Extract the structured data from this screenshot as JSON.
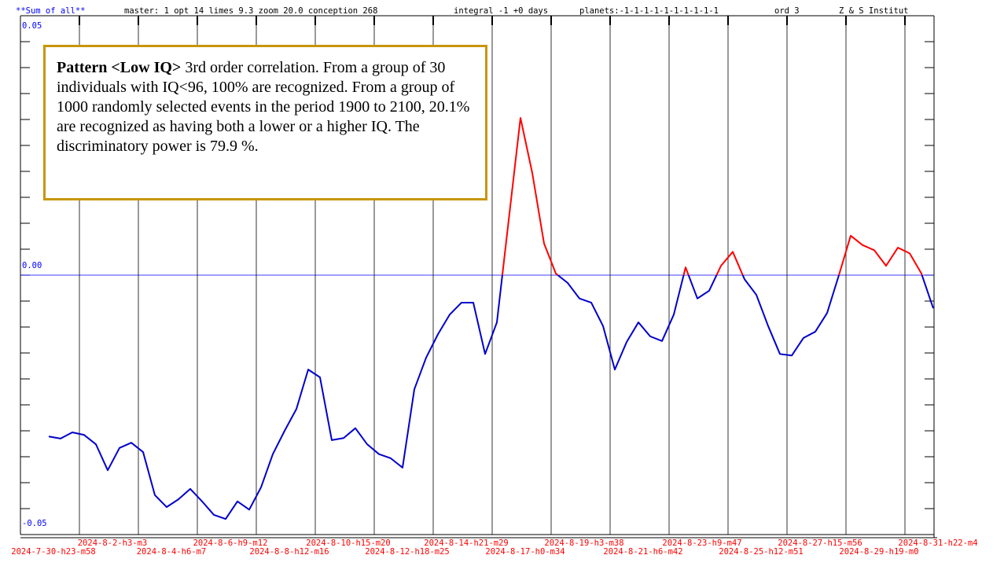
{
  "chart_data": {
    "type": "line",
    "header": [
      "**Sum of all**",
      "master: 1  opt 14 limes 9.3 zoom 20.0 conception 268",
      "integral -1 +0 days",
      "planets:-1-1-1-1-1-1-1-1-1-1",
      "ord 3",
      "Z & S Institut"
    ],
    "annotation": {
      "bold": "Pattern <Low IQ>",
      "text": "3rd order correlation. From a group of 30 individuals with IQ<96, 100% are recognized. From a group of 1000 randomly selected events in the period 1900 to 2100, 20.1% are recognized as having both a lower or a higher IQ. The discriminatory power is 79.9 %."
    },
    "xtick_labels": [
      "2024-7-30-h23-m58",
      "2024-8-2-h3-m3",
      "2024-8-4-h6-m7",
      "2024-8-6-h9-m12",
      "2024-8-8-h12-m16",
      "2024-8-10-h15-m20",
      "2024-8-12-h18-m25",
      "2024-8-14-h21-m29",
      "2024-8-17-h0-m34",
      "2024-8-19-h3-m38",
      "2024-8-21-h6-m42",
      "2024-8-23-h9-m47",
      "2024-8-25-h12-m51",
      "2024-8-27-h15-m56",
      "2024-8-29-h19-m0",
      "2024-8-31-h22-m4"
    ],
    "ylim": [
      -0.05,
      0.05
    ],
    "yticks": [
      {
        "value": -0.05,
        "label": "-0.05"
      },
      {
        "value": 0,
        "label": "0.00"
      },
      {
        "value": 0.05,
        "label": "0.05"
      }
    ],
    "color": "#0000cc",
    "positive_color": "#ff0000",
    "grid": true,
    "values": [
      -0.0311,
      -0.0315,
      -0.0303,
      -0.0308,
      -0.0326,
      -0.0376,
      -0.0333,
      -0.0323,
      -0.0341,
      -0.0424,
      -0.0447,
      -0.0432,
      -0.0412,
      -0.0436,
      -0.0462,
      -0.047,
      -0.0436,
      -0.0452,
      -0.0409,
      -0.0345,
      -0.03,
      -0.0258,
      -0.0182,
      -0.0197,
      -0.0318,
      -0.0314,
      -0.0295,
      -0.0326,
      -0.0345,
      -0.0353,
      -0.0371,
      -0.022,
      -0.0159,
      -0.0114,
      -0.0076,
      -0.0053,
      -0.0053,
      -0.0152,
      -0.0091,
      0.0106,
      0.0303,
      0.0197,
      0.0061,
      0.0003,
      -0.0015,
      -0.0045,
      -0.0053,
      -0.0098,
      -0.0182,
      -0.0129,
      -0.0091,
      -0.0118,
      -0.0127,
      -0.0076,
      0.0015,
      -0.0045,
      -0.003,
      0.0018,
      0.0045,
      -0.0008,
      -0.0038,
      -0.0098,
      -0.0152,
      -0.0155,
      -0.0121,
      -0.0109,
      -0.0073,
      0,
      0.0076,
      0.0058,
      0.0048,
      0.0018,
      0.0053,
      0.0042,
      0.0003,
      -0.0064
    ]
  }
}
